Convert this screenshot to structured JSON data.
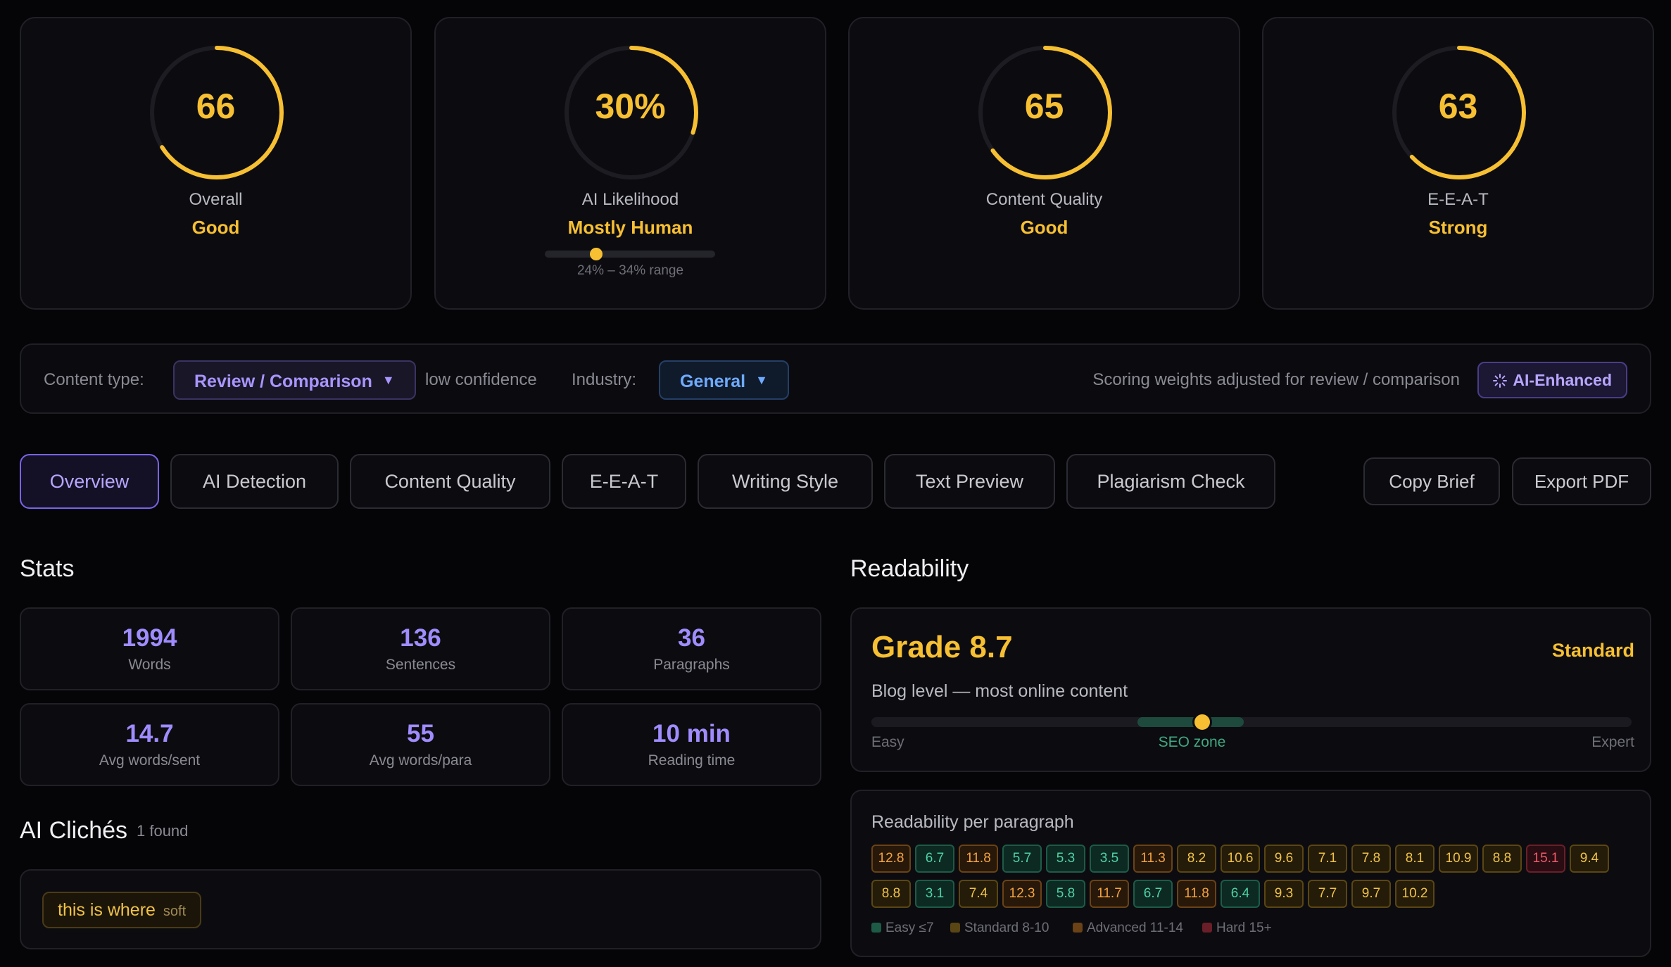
{
  "scores": [
    {
      "value": "66",
      "label": "Overall",
      "verdict": "Good",
      "fraction": 0.66
    },
    {
      "value": "30%",
      "label": "AI Likelihood",
      "verdict": "Mostly Human",
      "fraction": 0.3,
      "range_text": "24% – 34% range",
      "range_low": 0.24,
      "range_high": 0.34,
      "range_point": 0.3
    },
    {
      "value": "65",
      "label": "Content Quality",
      "verdict": "Good",
      "fraction": 0.65
    },
    {
      "value": "63",
      "label": "E-E-A-T",
      "verdict": "Strong",
      "fraction": 0.63
    }
  ],
  "content_type": {
    "label": "Content type:",
    "value": "Review / Comparison",
    "confidence": "low confidence",
    "industry_label": "Industry:",
    "industry_value": "General",
    "note": "Scoring weights adjusted for review / comparison",
    "badge": "AI-Enhanced"
  },
  "tabs": [
    "Overview",
    "AI Detection",
    "Content Quality",
    "E-E-A-T",
    "Writing Style",
    "Text Preview",
    "Plagiarism Check"
  ],
  "actions": {
    "copy": "Copy Brief",
    "export": "Export PDF"
  },
  "stats": {
    "title": "Stats",
    "items": [
      {
        "value": "1994",
        "label": "Words"
      },
      {
        "value": "136",
        "label": "Sentences"
      },
      {
        "value": "36",
        "label": "Paragraphs"
      },
      {
        "value": "14.7",
        "label": "Avg words/sent"
      },
      {
        "value": "55",
        "label": "Avg words/para"
      },
      {
        "value": "10 min",
        "label": "Reading time"
      }
    ]
  },
  "cliches": {
    "title": "AI Clichés",
    "count": "1 found",
    "items": [
      {
        "text": "this is where",
        "severity": "soft"
      }
    ]
  },
  "readability": {
    "title": "Readability",
    "grade": "Grade 8.7",
    "level": "Standard",
    "description": "Blog level — most online content",
    "scale_easy": "Easy",
    "scale_zone": "SEO zone",
    "scale_expert": "Expert",
    "grade_position": 0.435,
    "zone_start": 0.35,
    "zone_end": 0.49,
    "per_paragraph_title": "Readability per paragraph",
    "paragraphs": [
      "12.8",
      "6.7",
      "11.8",
      "5.7",
      "5.3",
      "3.5",
      "11.3",
      "8.2",
      "10.6",
      "9.6",
      "7.1",
      "7.8",
      "8.1",
      "10.9",
      "8.8",
      "15.1",
      "9.4",
      "8.8",
      "3.1",
      "7.4",
      "12.3",
      "5.8",
      "11.7",
      "6.7",
      "11.8",
      "6.4",
      "9.3",
      "7.7",
      "9.7",
      "10.2"
    ],
    "legend": [
      "Easy ≤7",
      "Standard 8-10",
      "Advanced 11-14",
      "Hard 15+"
    ]
  },
  "colors": {
    "accent": "#f7bf32",
    "purple": "#a08cff",
    "easy": "#4fd1a5",
    "hard": "#f05a6a"
  }
}
